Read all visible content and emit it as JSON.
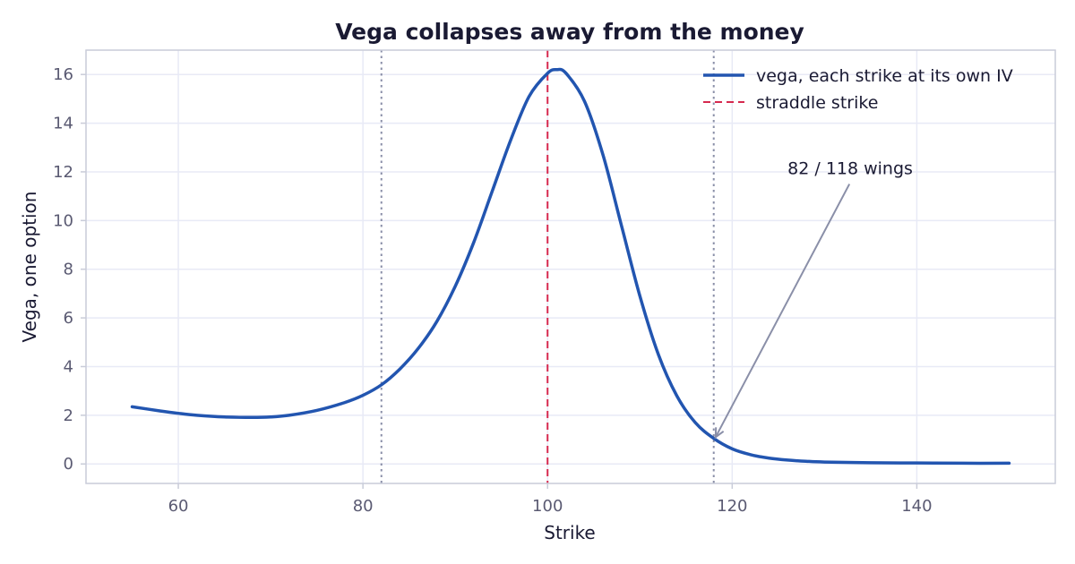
{
  "chart_data": {
    "type": "line",
    "title": "Vega collapses away from the money",
    "xlabel": "Strike",
    "ylabel": "Vega, one option",
    "xlim": [
      50,
      155
    ],
    "ylim": [
      -0.8,
      17
    ],
    "xticks": [
      60,
      80,
      100,
      120,
      140
    ],
    "yticks": [
      0,
      2,
      4,
      6,
      8,
      10,
      12,
      14,
      16
    ],
    "grid": true,
    "legend_position": "top-right",
    "series": [
      {
        "name": "vega, each strike at its own IV",
        "style": "solid",
        "color": "#2255b0",
        "x": [
          55,
          58,
          60,
          62,
          65,
          68,
          70,
          72,
          75,
          78,
          80,
          82,
          84,
          86,
          88,
          90,
          92,
          94,
          96,
          98,
          100,
          101,
          102,
          104,
          106,
          108,
          110,
          112,
          114,
          116,
          118,
          120,
          122,
          124,
          126,
          128,
          130,
          135,
          140,
          145,
          150
        ],
        "y": [
          2.35,
          2.18,
          2.08,
          2.0,
          1.93,
          1.91,
          1.93,
          2.0,
          2.2,
          2.52,
          2.82,
          3.25,
          3.9,
          4.75,
          5.85,
          7.3,
          9.1,
          11.2,
          13.3,
          15.1,
          16.05,
          16.2,
          16.05,
          14.9,
          12.7,
          9.8,
          6.9,
          4.5,
          2.8,
          1.7,
          1.05,
          0.62,
          0.38,
          0.24,
          0.16,
          0.11,
          0.08,
          0.05,
          0.04,
          0.03,
          0.03
        ]
      }
    ],
    "vlines": [
      {
        "name": "straddle strike",
        "x": 100,
        "style": "dashed",
        "color": "#d6294f",
        "in_legend": true
      },
      {
        "x": 82,
        "style": "dotted",
        "color": "#8a8fa8",
        "in_legend": false
      },
      {
        "x": 118,
        "style": "dotted",
        "color": "#8a8fa8",
        "in_legend": false
      }
    ],
    "annotations": [
      {
        "text": "82 / 118 wings",
        "text_x": 126,
        "text_y": 11.9,
        "arrow_from_x": 132.7,
        "arrow_from_y": 11.5,
        "arrow_to_x": 118.2,
        "arrow_to_y": 1.1,
        "color": "#8a8fa8"
      }
    ]
  }
}
